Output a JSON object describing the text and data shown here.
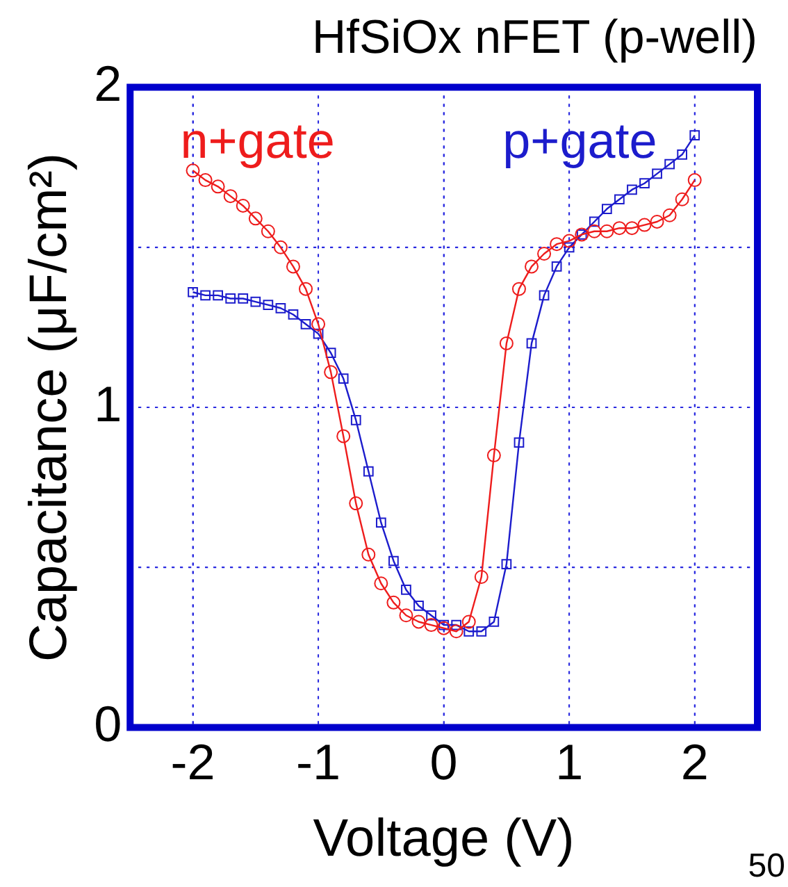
{
  "chart_data": {
    "type": "line",
    "title": "HfSiOx nFET (p-well)",
    "xlabel": "Voltage (V)",
    "ylabel": "Capacitance (μF/cm²)",
    "annotations": [
      "50"
    ],
    "x": [
      -2,
      -1.9,
      -1.8,
      -1.7,
      -1.6,
      -1.5,
      -1.4,
      -1.3,
      -1.2,
      -1.1,
      -1,
      -0.9,
      -0.8,
      -0.7,
      -0.6,
      -0.5,
      -0.4,
      -0.3,
      -0.2,
      -0.1,
      0,
      0.1,
      0.2,
      0.3,
      0.4,
      0.5,
      0.6,
      0.7,
      0.8,
      0.9,
      1,
      1.1,
      1.2,
      1.3,
      1.4,
      1.5,
      1.6,
      1.7,
      1.8,
      1.9,
      2
    ],
    "series": [
      {
        "name": "n+gate",
        "color": "#ee1c1c",
        "marker": "circle",
        "values": [
          1.74,
          1.71,
          1.69,
          1.66,
          1.63,
          1.59,
          1.55,
          1.5,
          1.44,
          1.37,
          1.26,
          1.11,
          0.91,
          0.7,
          0.54,
          0.45,
          0.39,
          0.35,
          0.33,
          0.32,
          0.31,
          0.3,
          0.33,
          0.47,
          0.85,
          1.2,
          1.37,
          1.44,
          1.48,
          1.51,
          1.52,
          1.54,
          1.55,
          1.55,
          1.56,
          1.56,
          1.57,
          1.58,
          1.6,
          1.65,
          1.71
        ]
      },
      {
        "name": "p+gate",
        "color": "#1c1ccc",
        "marker": "square",
        "values": [
          1.36,
          1.35,
          1.35,
          1.34,
          1.34,
          1.33,
          1.32,
          1.31,
          1.29,
          1.26,
          1.23,
          1.17,
          1.09,
          0.96,
          0.8,
          0.64,
          0.52,
          0.43,
          0.38,
          0.35,
          0.32,
          0.32,
          0.3,
          0.3,
          0.33,
          0.51,
          0.89,
          1.2,
          1.35,
          1.44,
          1.5,
          1.54,
          1.58,
          1.62,
          1.65,
          1.68,
          1.7,
          1.73,
          1.76,
          1.79,
          1.85
        ]
      }
    ],
    "xlim": [
      -2.5,
      2.5
    ],
    "xticks": [
      -2,
      -1,
      0,
      1,
      2
    ],
    "ylim": [
      0,
      2
    ],
    "yticks": [
      0,
      {
        "value": 0.5,
        "label": null
      },
      1,
      {
        "value": 1.5,
        "label": null
      },
      2
    ],
    "grid": true,
    "legend": false,
    "line_style": "solid"
  }
}
